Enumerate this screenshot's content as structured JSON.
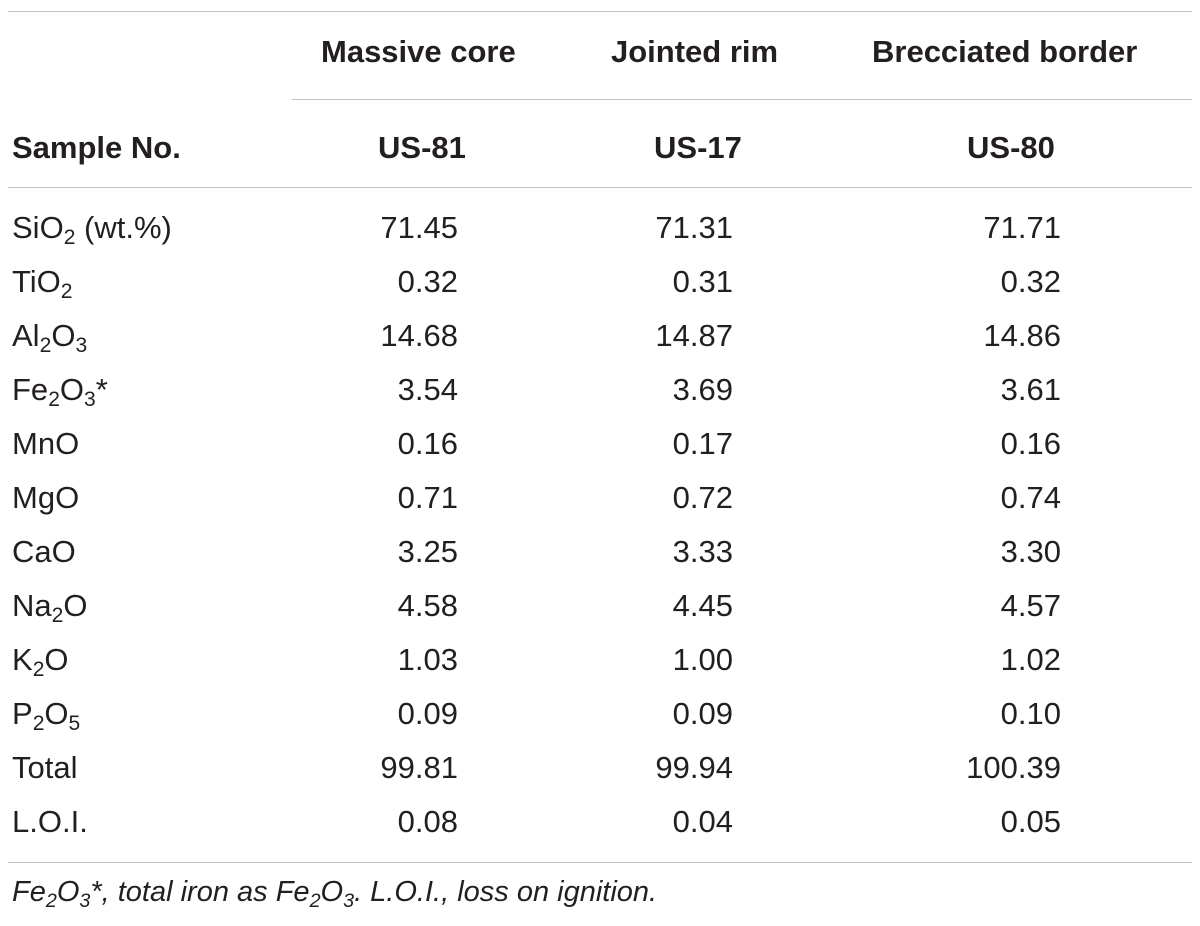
{
  "table": {
    "group_headers": [
      "Massive core",
      "Jointed rim",
      "Brecciated border"
    ],
    "sample_label": "Sample No.",
    "sample_ids": [
      "US-81",
      "US-17",
      "US-80"
    ],
    "rows": [
      {
        "label_main": "SiO",
        "label_sub": "2",
        "label_rest": " (wt.%)",
        "values": [
          "71.45",
          "71.31",
          "71.71"
        ]
      },
      {
        "label_main": "TiO",
        "label_sub": "2",
        "label_rest": "",
        "values": [
          "0.32",
          "0.31",
          "0.32"
        ]
      },
      {
        "label_main": "Al",
        "label_sub": "2",
        "label_rest": "O",
        "label_sub2": "3",
        "values": [
          "14.68",
          "14.87",
          "14.86"
        ]
      },
      {
        "label_main": "Fe",
        "label_sub": "2",
        "label_rest": "O",
        "label_sub2": "3",
        "label_tail": "*",
        "values": [
          "3.54",
          "3.69",
          "3.61"
        ]
      },
      {
        "label_main": "MnO",
        "values": [
          "0.16",
          "0.17",
          "0.16"
        ]
      },
      {
        "label_main": "MgO",
        "values": [
          "0.71",
          "0.72",
          "0.74"
        ]
      },
      {
        "label_main": "CaO",
        "values": [
          "3.25",
          "3.33",
          "3.30"
        ]
      },
      {
        "label_main": "Na",
        "label_sub": "2",
        "label_rest": "O",
        "values": [
          "4.58",
          "4.45",
          "4.57"
        ]
      },
      {
        "label_main": "K",
        "label_sub": "2",
        "label_rest": "O",
        "values": [
          "1.03",
          "1.00",
          "1.02"
        ]
      },
      {
        "label_main": "P",
        "label_sub": "2",
        "label_rest": "O",
        "label_sub2": "5",
        "values": [
          "0.09",
          "0.09",
          "0.10"
        ]
      },
      {
        "label_main": "Total",
        "values": [
          "99.81",
          "99.94",
          "100.39"
        ]
      },
      {
        "label_main": "L.O.I.",
        "values": [
          "0.08",
          "0.04",
          "0.05"
        ]
      }
    ]
  },
  "footnote": {
    "p1": "Fe",
    "s1": "2",
    "p2": "O",
    "s2": "3",
    "p3": "*, total iron as Fe",
    "s3": "2",
    "p4": "O",
    "s4": "3",
    "p5": ". L.O.I., loss on ignition."
  }
}
